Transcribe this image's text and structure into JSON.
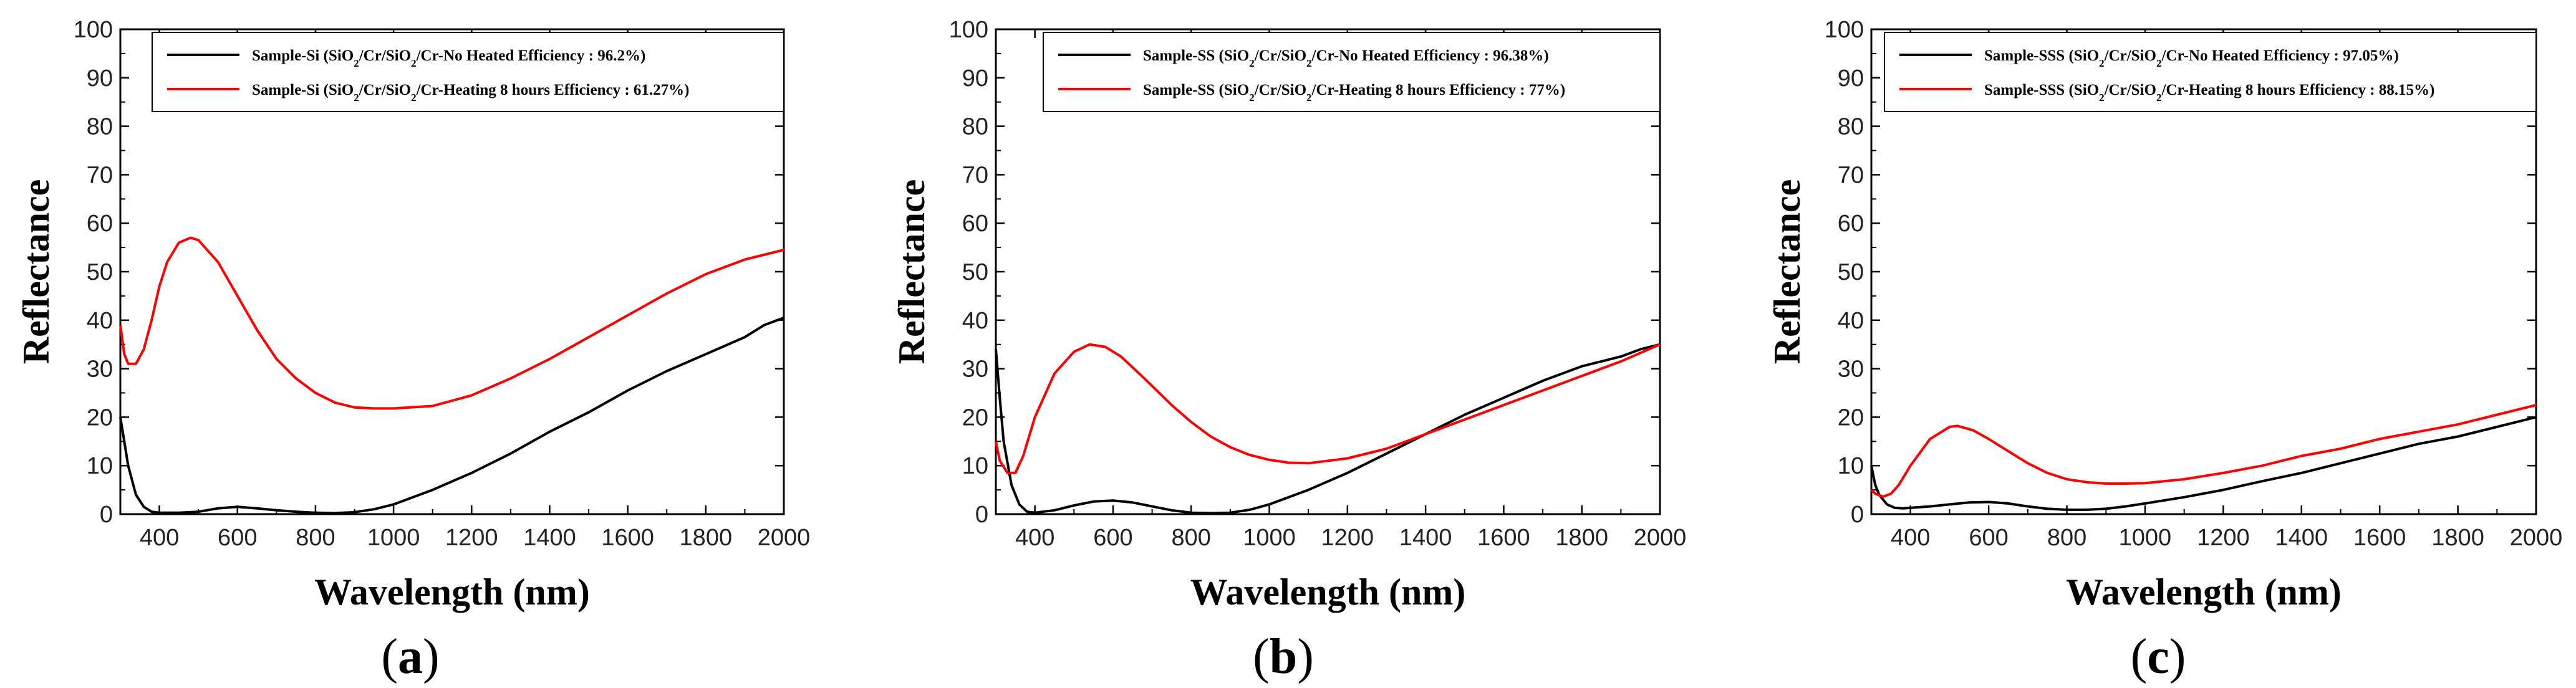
{
  "chart_data": [
    {
      "type": "line",
      "panel_label": "a",
      "xlabel": "Wavelength (nm)",
      "ylabel": "Reflectance",
      "xlim": [
        300,
        2000
      ],
      "ylim": [
        0,
        100
      ],
      "xticks": [
        400,
        600,
        800,
        1000,
        1200,
        1400,
        1600,
        1800,
        2000
      ],
      "yticks": [
        0,
        10,
        20,
        30,
        40,
        50,
        60,
        70,
        80,
        90,
        100
      ],
      "legend_position": "top",
      "series": [
        {
          "name": "Sample-Si (SiO2/Cr/SiO2/Cr-No Heated Efficiency : 96.2%)",
          "label_prefix": "Sample-Si (SiO",
          "label_mid1": "/Cr/SiO",
          "label_suffix": "/Cr-No Heated Efficiency : 96.2%)",
          "subscript": "2",
          "color": "#000000",
          "x": [
            300,
            310,
            320,
            340,
            360,
            380,
            400,
            450,
            500,
            550,
            600,
            650,
            700,
            750,
            800,
            850,
            900,
            950,
            1000,
            1100,
            1200,
            1300,
            1400,
            1500,
            1600,
            1700,
            1800,
            1900,
            1950,
            2000
          ],
          "y": [
            20,
            15,
            10,
            4,
            1.5,
            0.5,
            0.3,
            0.3,
            0.5,
            1.2,
            1.5,
            1.2,
            0.8,
            0.5,
            0.3,
            0.2,
            0.4,
            1,
            2,
            5,
            8.5,
            12.5,
            17,
            21,
            25.5,
            29.5,
            33,
            36.5,
            39,
            40.5
          ]
        },
        {
          "name": "Sample-Si (SiO2/Cr/SiO2/Cr-Heating 8 hours Efficiency : 61.27%)",
          "label_prefix": "Sample-Si (SiO",
          "label_mid1": "/Cr/SiO",
          "label_suffix": "/Cr-Heating 8 hours Efficiency : 61.27%)",
          "subscript": "2",
          "color": "#ff0000",
          "x": [
            300,
            310,
            320,
            340,
            360,
            380,
            400,
            420,
            450,
            480,
            500,
            550,
            600,
            650,
            700,
            750,
            800,
            850,
            900,
            950,
            1000,
            1100,
            1200,
            1300,
            1400,
            1500,
            1600,
            1700,
            1800,
            1900,
            2000
          ],
          "y": [
            39,
            33,
            31,
            31,
            34,
            40,
            47,
            52,
            56,
            57,
            56.5,
            52,
            45,
            38,
            32,
            28,
            25,
            23,
            22,
            21.8,
            21.8,
            22.3,
            24.5,
            28,
            32,
            36.5,
            41,
            45.5,
            49.5,
            52.5,
            54.5
          ]
        }
      ]
    },
    {
      "type": "line",
      "panel_label": "b",
      "xlabel": "Wavelength (nm)",
      "ylabel": "Reflectance",
      "xlim": [
        300,
        2000
      ],
      "ylim": [
        0,
        100
      ],
      "xticks": [
        400,
        600,
        800,
        1000,
        1200,
        1400,
        1600,
        1800,
        2000
      ],
      "yticks": [
        0,
        10,
        20,
        30,
        40,
        50,
        60,
        70,
        80,
        90,
        100
      ],
      "legend_position": "top",
      "series": [
        {
          "name": "Sample-SS (SiO2/Cr/SiO2/Cr-No Heated Efficiency : 96.38%)",
          "label_prefix": "Sample-SS (SiO",
          "label_mid1": "/Cr/SiO",
          "label_suffix": "/Cr-No Heated Efficiency : 96.38%)",
          "subscript": "2",
          "color": "#000000",
          "x": [
            300,
            310,
            320,
            340,
            360,
            380,
            400,
            450,
            500,
            550,
            600,
            650,
            700,
            750,
            800,
            850,
            900,
            950,
            1000,
            1100,
            1200,
            1300,
            1400,
            1500,
            1600,
            1700,
            1800,
            1900,
            1950,
            2000
          ],
          "y": [
            34,
            24,
            15,
            6,
            2,
            0.5,
            0.3,
            0.8,
            1.8,
            2.6,
            2.8,
            2.4,
            1.6,
            0.8,
            0.3,
            0.2,
            0.3,
            0.9,
            2,
            5,
            8.5,
            12.5,
            16.5,
            20.5,
            24,
            27.5,
            30.5,
            32.5,
            34,
            35
          ]
        },
        {
          "name": "Sample-SS (SiO2/Cr/SiO2/Cr-Heating 8 hours Efficiency : 77%)",
          "label_prefix": "Sample-SS (SiO",
          "label_mid1": "/Cr/SiO",
          "label_suffix": "/Cr-Heating 8 hours Efficiency : 77%)",
          "subscript": "2",
          "color": "#ff0000",
          "x": [
            300,
            310,
            330,
            350,
            370,
            400,
            450,
            500,
            540,
            580,
            620,
            680,
            750,
            800,
            850,
            900,
            950,
            1000,
            1050,
            1100,
            1200,
            1300,
            1400,
            1500,
            1600,
            1700,
            1800,
            1900,
            2000
          ],
          "y": [
            15,
            11,
            8.5,
            8.5,
            12,
            20,
            29,
            33.5,
            35,
            34.5,
            32.5,
            28,
            22.5,
            19,
            16,
            13.8,
            12.2,
            11.2,
            10.6,
            10.5,
            11.5,
            13.5,
            16.5,
            19.5,
            22.5,
            25.5,
            28.5,
            31.5,
            35
          ]
        }
      ]
    },
    {
      "type": "line",
      "panel_label": "c",
      "xlabel": "Wavelength (nm)",
      "ylabel": "Reflectance",
      "xlim": [
        300,
        2000
      ],
      "ylim": [
        0,
        100
      ],
      "xticks": [
        400,
        600,
        800,
        1000,
        1200,
        1400,
        1600,
        1800,
        2000
      ],
      "yticks": [
        0,
        10,
        20,
        30,
        40,
        50,
        60,
        70,
        80,
        90,
        100
      ],
      "legend_position": "top",
      "series": [
        {
          "name": "Sample-SSS (SiO2/Cr/SiO2/Cr-No Heated Efficiency : 97.05%)",
          "label_prefix": "Sample-SSS (SiO",
          "label_mid1": "/Cr/SiO",
          "label_suffix": "/Cr-No Heated Efficiency : 97.05%)",
          "subscript": "2",
          "color": "#000000",
          "x": [
            300,
            310,
            320,
            340,
            360,
            380,
            400,
            450,
            500,
            550,
            600,
            650,
            700,
            750,
            800,
            850,
            900,
            950,
            1000,
            1100,
            1200,
            1300,
            1400,
            1500,
            1600,
            1700,
            1800,
            1900,
            2000
          ],
          "y": [
            10,
            6,
            4,
            2,
            1.3,
            1.2,
            1.3,
            1.6,
            2,
            2.4,
            2.5,
            2.2,
            1.6,
            1.1,
            0.9,
            0.9,
            1.1,
            1.6,
            2.2,
            3.5,
            5,
            6.8,
            8.5,
            10.5,
            12.5,
            14.5,
            16,
            18,
            20
          ]
        },
        {
          "name": "Sample-SSS (SiO2/Cr/SiO2/Cr-Heating 8 hours Efficiency : 88.15%)",
          "label_prefix": "Sample-SSS (SiO",
          "label_mid1": "/Cr/SiO",
          "label_suffix": "/Cr-Heating 8 hours Efficiency : 88.15%)",
          "subscript": "2",
          "color": "#ff0000",
          "x": [
            300,
            310,
            330,
            350,
            370,
            400,
            450,
            500,
            520,
            560,
            600,
            650,
            700,
            750,
            800,
            850,
            900,
            950,
            1000,
            1100,
            1200,
            1300,
            1400,
            1500,
            1600,
            1700,
            1800,
            1900,
            2000
          ],
          "y": [
            5,
            4.2,
            3.6,
            4.2,
            6,
            10,
            15.5,
            18,
            18.2,
            17.3,
            15.5,
            13,
            10.5,
            8.5,
            7.2,
            6.6,
            6.3,
            6.3,
            6.4,
            7.2,
            8.5,
            10,
            12,
            13.5,
            15.5,
            17,
            18.5,
            20.5,
            22.5
          ]
        }
      ]
    }
  ]
}
